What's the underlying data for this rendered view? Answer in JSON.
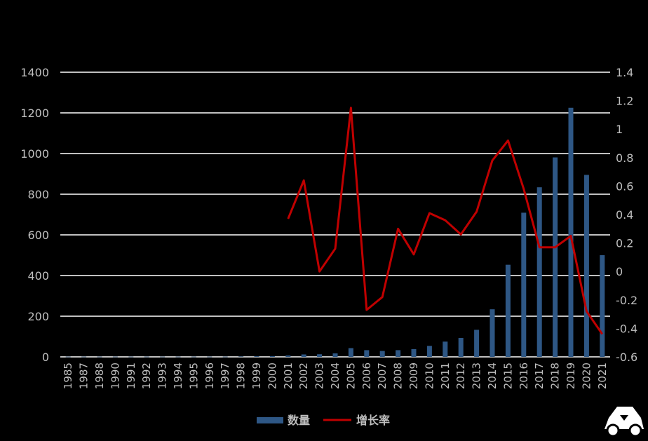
{
  "chart_data": {
    "type": "bar",
    "categories": [
      "1985",
      "1987",
      "1988",
      "1990",
      "1991",
      "1992",
      "1993",
      "1994",
      "1995",
      "1996",
      "1997",
      "1998",
      "1999",
      "2000",
      "2001",
      "2002",
      "2003",
      "2004",
      "2005",
      "2006",
      "2007",
      "2008",
      "2009",
      "2010",
      "2011",
      "2012",
      "2013",
      "2014",
      "2015",
      "2016",
      "2017",
      "2018",
      "2019",
      "2020",
      "2021"
    ],
    "series": [
      {
        "name": "数量",
        "type": "bar",
        "axis": "left",
        "color": "#2e5785",
        "values": [
          1,
          1,
          1,
          1,
          1,
          1,
          1,
          1,
          1,
          1,
          1,
          2,
          3,
          4,
          7,
          12,
          13,
          17,
          43,
          33,
          29,
          33,
          38,
          54,
          75,
          93,
          133,
          234,
          453,
          709,
          834,
          981,
          1225,
          895,
          500
        ]
      },
      {
        "name": "增长率",
        "type": "line",
        "axis": "right",
        "color": "#c00000",
        "values": [
          null,
          null,
          null,
          null,
          null,
          null,
          null,
          null,
          null,
          null,
          null,
          null,
          null,
          null,
          0.37,
          0.64,
          0.0,
          0.16,
          1.15,
          -0.27,
          -0.18,
          0.3,
          0.12,
          0.41,
          0.36,
          0.26,
          0.42,
          0.78,
          0.92,
          0.58,
          0.17,
          0.17,
          0.25,
          -0.28,
          -0.44
        ]
      }
    ],
    "y_left": {
      "min": 0,
      "max": 1400,
      "ticks": [
        "0",
        "200",
        "400",
        "600",
        "800",
        "1000",
        "1200",
        "1400"
      ]
    },
    "y_right": {
      "min": -0.6,
      "max": 1.4,
      "ticks": [
        "-0.6",
        "-0.4",
        "-0.2",
        "0",
        "0.2",
        "0.4",
        "0.6",
        "0.8",
        "1",
        "1.2",
        "1.4"
      ]
    },
    "grid": true,
    "legend_position": "bottom",
    "colors": {
      "background": "#000000",
      "grid": "#ffffff",
      "text": "#bfbfbf"
    }
  }
}
